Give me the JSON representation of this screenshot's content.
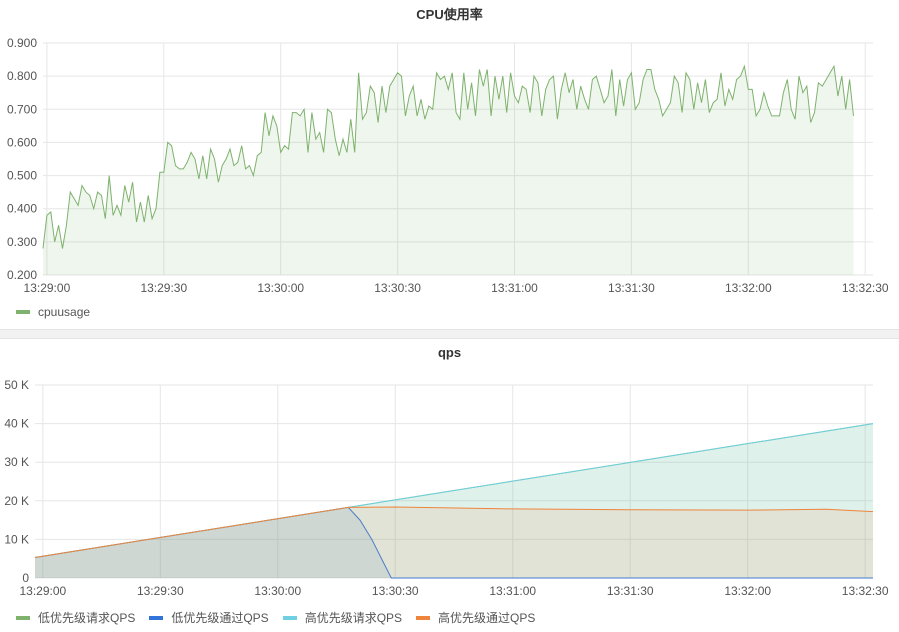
{
  "chart_data": [
    {
      "type": "area",
      "title": "CPU使用率",
      "ylim": [
        0.2,
        0.9
      ],
      "yticks": [
        "0.900",
        "0.800",
        "0.700",
        "0.600",
        "0.500",
        "0.400",
        "0.300",
        "0.200"
      ],
      "ytick_values": [
        0.9,
        0.8,
        0.7,
        0.6,
        0.5,
        0.4,
        0.3,
        0.2
      ],
      "xlim": [
        "13:28:59",
        "13:32:32"
      ],
      "xticks": [
        "13:29:00",
        "13:29:30",
        "13:30:00",
        "13:30:30",
        "13:31:00",
        "13:31:30",
        "13:32:00",
        "13:32:30"
      ],
      "grid": true,
      "legend_placement": "bottom-left",
      "x_start": "13:28:59",
      "x_step_seconds": 1,
      "series": [
        {
          "name": "cpuusage",
          "color": "#7eb26d",
          "values": [
            0.28,
            0.38,
            0.39,
            0.3,
            0.35,
            0.28,
            0.35,
            0.45,
            0.43,
            0.41,
            0.47,
            0.45,
            0.44,
            0.4,
            0.45,
            0.44,
            0.37,
            0.5,
            0.38,
            0.41,
            0.38,
            0.47,
            0.42,
            0.48,
            0.36,
            0.42,
            0.36,
            0.44,
            0.37,
            0.4,
            0.51,
            0.51,
            0.6,
            0.59,
            0.53,
            0.52,
            0.52,
            0.54,
            0.57,
            0.55,
            0.49,
            0.56,
            0.49,
            0.58,
            0.55,
            0.48,
            0.53,
            0.55,
            0.58,
            0.53,
            0.54,
            0.59,
            0.52,
            0.53,
            0.5,
            0.56,
            0.57,
            0.69,
            0.62,
            0.68,
            0.65,
            0.57,
            0.59,
            0.58,
            0.69,
            0.69,
            0.68,
            0.7,
            0.57,
            0.69,
            0.61,
            0.63,
            0.57,
            0.7,
            0.69,
            0.61,
            0.56,
            0.61,
            0.57,
            0.67,
            0.57,
            0.81,
            0.67,
            0.69,
            0.77,
            0.75,
            0.66,
            0.77,
            0.69,
            0.77,
            0.79,
            0.81,
            0.8,
            0.68,
            0.74,
            0.77,
            0.68,
            0.73,
            0.67,
            0.71,
            0.7,
            0.81,
            0.79,
            0.8,
            0.76,
            0.81,
            0.69,
            0.67,
            0.81,
            0.7,
            0.78,
            0.68,
            0.82,
            0.77,
            0.82,
            0.68,
            0.8,
            0.73,
            0.8,
            0.69,
            0.81,
            0.74,
            0.72,
            0.77,
            0.76,
            0.69,
            0.8,
            0.78,
            0.68,
            0.76,
            0.79,
            0.8,
            0.67,
            0.76,
            0.81,
            0.75,
            0.79,
            0.7,
            0.77,
            0.73,
            0.7,
            0.79,
            0.8,
            0.76,
            0.72,
            0.74,
            0.82,
            0.68,
            0.79,
            0.71,
            0.79,
            0.81,
            0.7,
            0.72,
            0.79,
            0.82,
            0.82,
            0.76,
            0.73,
            0.68,
            0.7,
            0.72,
            0.8,
            0.78,
            0.69,
            0.81,
            0.79,
            0.7,
            0.78,
            0.72,
            0.79,
            0.69,
            0.72,
            0.73,
            0.81,
            0.71,
            0.76,
            0.73,
            0.79,
            0.8,
            0.83,
            0.76,
            0.76,
            0.68,
            0.7,
            0.75,
            0.71,
            0.68,
            0.68,
            0.68,
            0.75,
            0.79,
            0.7,
            0.67,
            0.8,
            0.75,
            0.77,
            0.66,
            0.69,
            0.78,
            0.77,
            0.79,
            0.81,
            0.83,
            0.74,
            0.8,
            0.7,
            0.79,
            0.68
          ]
        }
      ]
    },
    {
      "type": "area",
      "title": "qps",
      "ylim": [
        0,
        50000
      ],
      "yticks": [
        "50 K",
        "40 K",
        "30 K",
        "20 K",
        "10 K",
        "0"
      ],
      "ytick_values": [
        50000,
        40000,
        30000,
        20000,
        10000,
        0
      ],
      "xlim": [
        "13:28:58",
        "13:32:32"
      ],
      "xticks": [
        "13:29:00",
        "13:29:30",
        "13:30:00",
        "13:30:30",
        "13:31:00",
        "13:31:30",
        "13:32:00",
        "13:32:30"
      ],
      "grid": true,
      "legend_placement": "bottom-left",
      "series": [
        {
          "name": "低优先级请求QPS",
          "color": "#7eb26d",
          "points": [
            [
              "13:28:58",
              5300
            ],
            [
              "13:30:18",
              18300
            ],
            [
              "13:32:32",
              40000
            ]
          ]
        },
        {
          "name": "低优先级通过QPS",
          "color": "#3274d9",
          "points": [
            [
              "13:28:58",
              5300
            ],
            [
              "13:30:18",
              18300
            ],
            [
              "13:30:21",
              15000
            ],
            [
              "13:30:24",
              10000
            ],
            [
              "13:30:27",
              4000
            ],
            [
              "13:30:29",
              0
            ],
            [
              "13:32:32",
              0
            ]
          ]
        },
        {
          "name": "高优先级请求QPS",
          "color": "#6ed0e0",
          "points": [
            [
              "13:28:58",
              5300
            ],
            [
              "13:30:18",
              18300
            ],
            [
              "13:32:32",
              40000
            ]
          ]
        },
        {
          "name": "高优先级通过QPS",
          "color": "#ef843c",
          "points": [
            [
              "13:28:58",
              5300
            ],
            [
              "13:30:18",
              18300
            ],
            [
              "13:30:30",
              18400
            ],
            [
              "13:31:00",
              17900
            ],
            [
              "13:31:30",
              17700
            ],
            [
              "13:32:00",
              17600
            ],
            [
              "13:32:20",
              17800
            ],
            [
              "13:32:32",
              17200
            ]
          ]
        }
      ]
    }
  ]
}
